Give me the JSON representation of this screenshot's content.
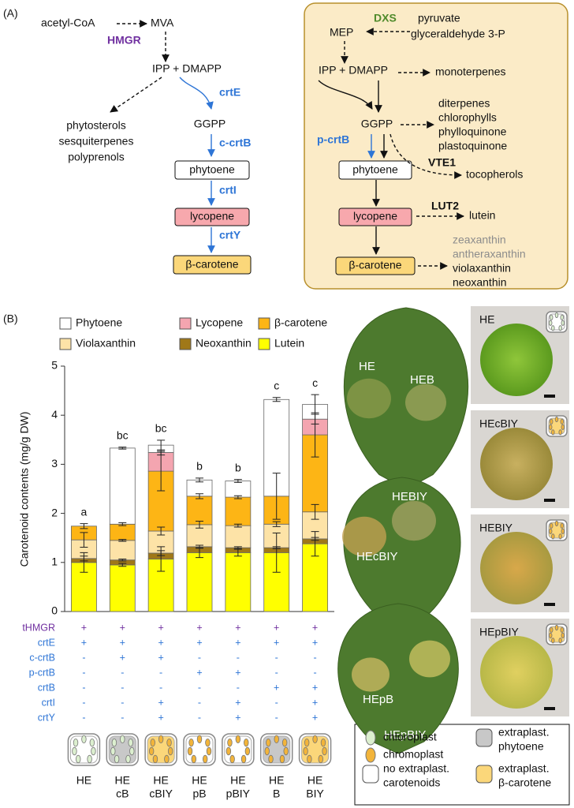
{
  "panel_a": {
    "label": "(A)",
    "cytosol": {
      "acetyl_coa": "acetyl-CoA",
      "mva": "MVA",
      "hmgr": "HMGR",
      "ipp": "IPP + DMAPP",
      "crte": "crtE",
      "side_products": [
        "phytosterols",
        "sesquiterpenes",
        "polyprenols"
      ],
      "ggpp": "GGPP",
      "c_crtb": "c-crtB",
      "phytoene": "phytoene",
      "crti": "crtI",
      "lycopene": "lycopene",
      "crty": "crtY",
      "beta_carotene": "β-carotene"
    },
    "plastid": {
      "dxs": "DXS",
      "precursors": [
        "pyruvate",
        "glyceraldehyde 3-P"
      ],
      "mep": "MEP",
      "ipp": "IPP + DMAPP",
      "monoterpenes": "monoterpenes",
      "ggpp_products": [
        "diterpenes",
        "chlorophylls",
        "phylloquinone",
        "plastoquinone"
      ],
      "ggpp": "GGPP",
      "p_crtb": "p-crtB",
      "vte1": "VTE1",
      "tocopherols": "tocopherols",
      "phytoene": "phytoene",
      "lycopene": "lycopene",
      "lut2": "LUT2",
      "lutein": "lutein",
      "beta_carotene": "β-carotene",
      "xanthophylls_gray": [
        "zeaxanthin",
        "antheraxanthin"
      ],
      "xanthophylls": [
        "violaxanthin",
        "neoxanthin"
      ]
    }
  },
  "panel_b_label": "(B)",
  "chart_data": {
    "type": "stacked_bar",
    "y_label": "Carotenoid contents (mg/g DW)",
    "categories": [
      [
        "HE"
      ],
      [
        "HE",
        "cB"
      ],
      [
        "HE",
        "cBIY"
      ],
      [
        "HE",
        "pB"
      ],
      [
        "HE",
        "pBIY"
      ],
      [
        "HE",
        "B"
      ],
      [
        "HE",
        "BIY"
      ]
    ],
    "ylim": [
      0,
      5
    ],
    "yticks": [
      0,
      1,
      2,
      3,
      4,
      5
    ],
    "series": [
      {
        "name": "Lutein",
        "color": "#ffff00",
        "values": [
          1.0,
          0.95,
          1.07,
          1.2,
          1.2,
          1.2,
          1.38
        ],
        "errors": [
          0.2,
          0.03,
          0.25,
          0.1,
          0.07,
          0.4,
          0.25
        ]
      },
      {
        "name": "Neoxanthin",
        "color": "#a07818",
        "values": [
          0.08,
          0.1,
          0.12,
          0.12,
          0.1,
          0.1,
          0.1
        ],
        "errors": [
          0.05,
          0.02,
          0.05,
          0.03,
          0.02,
          0.02,
          0.03
        ]
      },
      {
        "name": "Violaxanthin",
        "color": "#fde3a7",
        "values": [
          0.38,
          0.4,
          0.45,
          0.45,
          0.45,
          0.48,
          0.55
        ],
        "errors": [
          0.15,
          0.02,
          0.08,
          0.07,
          0.03,
          0.05,
          0.15
        ]
      },
      {
        "name": "β-carotene",
        "color": "#fdb515",
        "values": [
          0.28,
          0.33,
          1.22,
          0.58,
          0.58,
          0.57,
          1.57
        ],
        "errors": [
          0.05,
          0.03,
          0.4,
          0.05,
          0.03,
          0.47,
          0.45
        ]
      },
      {
        "name": "Lycopene",
        "color": "#f4a5b0",
        "values": [
          0,
          0,
          0.38,
          0,
          0,
          0,
          0.32
        ],
        "errors": [
          null,
          null,
          0.05,
          null,
          null,
          null,
          0.1
        ]
      },
      {
        "name": "Phytoene",
        "color": "#ffffff",
        "values": [
          0,
          1.55,
          0.15,
          0.33,
          0.33,
          1.97,
          0.3
        ],
        "errors": [
          null,
          0.02,
          0.1,
          0.04,
          0.03,
          0.04,
          0.2
        ]
      }
    ],
    "significance": [
      "a",
      "bc",
      "bc",
      "b",
      "b",
      "c",
      "c"
    ],
    "genotype": {
      "genes": [
        "tHMGR",
        "crtE",
        "c-crtB",
        "p-crtB",
        "crtB",
        "crtI",
        "crtY"
      ],
      "colors": [
        "#7030a0",
        "#2e75d6",
        "#2e75d6",
        "#2e75d6",
        "#2e75d6",
        "#2e75d6",
        "#2e75d6"
      ],
      "signs": [
        [
          "+",
          "+",
          "+",
          "+",
          "+",
          "+",
          "+"
        ],
        [
          "+",
          "+",
          "+",
          "+",
          "+",
          "+",
          "+"
        ],
        [
          "-",
          "+",
          "+",
          "-",
          "-",
          "-",
          "-"
        ],
        [
          "-",
          "-",
          "-",
          "+",
          "+",
          "-",
          "-"
        ],
        [
          "-",
          "-",
          "-",
          "-",
          "-",
          "+",
          "+"
        ],
        [
          "-",
          "-",
          "+",
          "-",
          "+",
          "-",
          "+"
        ],
        [
          "-",
          "-",
          "+",
          "-",
          "+",
          "-",
          "+"
        ]
      ]
    }
  },
  "leaf_photos": [
    [
      "HE",
      "HEB"
    ],
    [
      "HEBIY",
      "HEcBIY"
    ],
    [
      "HEpB",
      "HEpBIY"
    ]
  ],
  "cell_photos": [
    "HE",
    "HEcBIY",
    "HEBIY",
    "HEpBIY"
  ],
  "cell_legend": {
    "chloroplast": "chloroplast",
    "chromoplast": "chromoplast",
    "none": [
      "no extraplast.",
      "carotenoids"
    ],
    "phytoene": [
      "extraplast.",
      "phytoene"
    ],
    "beta_carotene": [
      "extraplast.",
      "β-carotene"
    ]
  }
}
